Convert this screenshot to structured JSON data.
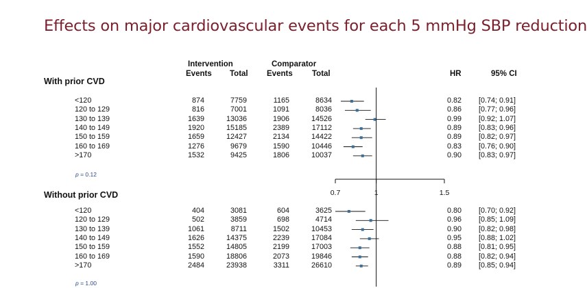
{
  "title": "Effects on major cardiovascular events for each 5 mmHg SBP reduction",
  "headers": {
    "intervention": "Intervention",
    "comparator": "Comparator",
    "events": "Events",
    "total": "Total",
    "hr": "HR",
    "ci": "95% CI"
  },
  "chart_data": {
    "type": "forest",
    "reference_line": 1,
    "x_axis": {
      "ticks": [
        "0.7",
        "1",
        "1.5"
      ],
      "tick_values": [
        0.7,
        1,
        1.5
      ],
      "range": [
        0.7,
        1.5
      ]
    },
    "groups": [
      {
        "label": "With prior CVD",
        "p_label": "p",
        "p_value": "= 0.12",
        "rows": [
          {
            "category": "<120",
            "int_events": "874",
            "int_total": "7759",
            "comp_events": "1165",
            "comp_total": "8634",
            "hr": "0.82",
            "ci": "[0.74; 0.91]",
            "hr_value": 0.82,
            "lo": 0.74,
            "hi": 0.91
          },
          {
            "category": "120 to 129",
            "int_events": "816",
            "int_total": "7001",
            "comp_events": "1091",
            "comp_total": "8036",
            "hr": "0.86",
            "ci": "[0.77; 0.96]",
            "hr_value": 0.86,
            "lo": 0.77,
            "hi": 0.96
          },
          {
            "category": "130 to 139",
            "int_events": "1639",
            "int_total": "13036",
            "comp_events": "1906",
            "comp_total": "14526",
            "hr": "0.99",
            "ci": "[0.92; 1.07]",
            "hr_value": 0.99,
            "lo": 0.92,
            "hi": 1.07
          },
          {
            "category": "140 to 149",
            "int_events": "1920",
            "int_total": "15185",
            "comp_events": "2389",
            "comp_total": "17112",
            "hr": "0.89",
            "ci": "[0.83; 0.96]",
            "hr_value": 0.89,
            "lo": 0.83,
            "hi": 0.96
          },
          {
            "category": "150 to 159",
            "int_events": "1659",
            "int_total": "12427",
            "comp_events": "2134",
            "comp_total": "14422",
            "hr": "0.89",
            "ci": "[0.82; 0.97]",
            "hr_value": 0.89,
            "lo": 0.82,
            "hi": 0.97
          },
          {
            "category": "160 to 169",
            "int_events": "1276",
            "int_total": "9679",
            "comp_events": "1590",
            "comp_total": "10446",
            "hr": "0.83",
            "ci": "[0.76; 0.90]",
            "hr_value": 0.83,
            "lo": 0.76,
            "hi": 0.9
          },
          {
            "category": ">170",
            "int_events": "1532",
            "int_total": "9425",
            "comp_events": "1806",
            "comp_total": "10037",
            "hr": "0.90",
            "ci": "[0.83; 0.97]",
            "hr_value": 0.9,
            "lo": 0.83,
            "hi": 0.97
          }
        ]
      },
      {
        "label": "Without  prior CVD",
        "p_label": "p",
        "p_value": "= 1.00",
        "rows": [
          {
            "category": "<120",
            "int_events": "404",
            "int_total": "3081",
            "comp_events": "604",
            "comp_total": "3625",
            "hr": "0.80",
            "ci": "[0.70; 0.92]",
            "hr_value": 0.8,
            "lo": 0.7,
            "hi": 0.92
          },
          {
            "category": "120 to 129",
            "int_events": "502",
            "int_total": "3859",
            "comp_events": "698",
            "comp_total": "4714",
            "hr": "0.96",
            "ci": "[0.85; 1.09]",
            "hr_value": 0.96,
            "lo": 0.85,
            "hi": 1.09
          },
          {
            "category": "130 to 139",
            "int_events": "1061",
            "int_total": "8711",
            "comp_events": "1502",
            "comp_total": "10453",
            "hr": "0.90",
            "ci": "[0.82; 0.98]",
            "hr_value": 0.9,
            "lo": 0.82,
            "hi": 0.98
          },
          {
            "category": "140 to 149",
            "int_events": "1626",
            "int_total": "14375",
            "comp_events": "2239",
            "comp_total": "17084",
            "hr": "0.95",
            "ci": "[0.88; 1.02]",
            "hr_value": 0.95,
            "lo": 0.88,
            "hi": 1.02
          },
          {
            "category": "150 to 159",
            "int_events": "1552",
            "int_total": "14805",
            "comp_events": "2199",
            "comp_total": "17003",
            "hr": "0.88",
            "ci": "[0.81; 0.95]",
            "hr_value": 0.88,
            "lo": 0.81,
            "hi": 0.95
          },
          {
            "category": "160 to 169",
            "int_events": "1590",
            "int_total": "18806",
            "comp_events": "2073",
            "comp_total": "19846",
            "hr": "0.88",
            "ci": "[0.82; 0.94]",
            "hr_value": 0.88,
            "lo": 0.82,
            "hi": 0.94
          },
          {
            "category": ">170",
            "int_events": "2484",
            "int_total": "23938",
            "comp_events": "3311",
            "comp_total": "26610",
            "hr": "0.89",
            "ci": "[0.85; 0.94]",
            "hr_value": 0.89,
            "lo": 0.85,
            "hi": 0.94
          }
        ]
      }
    ]
  },
  "colors": {
    "title": "#7a1f2b",
    "marker": "#3a6f9a",
    "p_value": "#2c4a8a"
  }
}
